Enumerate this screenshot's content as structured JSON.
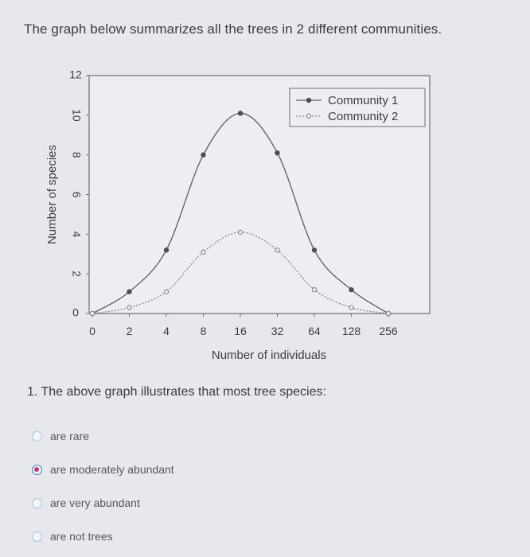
{
  "prompt": "The graph below summarizes all the trees in 2 different communities.",
  "question": "1. The above graph illustrates that most tree species:",
  "options": [
    {
      "label": "are rare",
      "selected": false
    },
    {
      "label": "are moderately abundant",
      "selected": true
    },
    {
      "label": "are very abundant",
      "selected": false
    },
    {
      "label": "are not trees",
      "selected": false
    }
  ],
  "colors": {
    "series1": "#5a5d62",
    "series2": "#8a8d92",
    "selected_radio": "#c2367f"
  },
  "chart_data": {
    "type": "line",
    "xlabel": "Number of individuals",
    "ylabel": "Number of species",
    "x": [
      "0",
      "2",
      "4",
      "8",
      "16",
      "32",
      "64",
      "128",
      "256"
    ],
    "ylim": [
      0,
      12
    ],
    "yticks": [
      0,
      2,
      4,
      6,
      8,
      10,
      12
    ],
    "grid": false,
    "legend_position": "top-right",
    "series": [
      {
        "name": "Community 1",
        "values": [
          0,
          1.1,
          3.2,
          8.0,
          10.1,
          8.1,
          3.2,
          1.2,
          0
        ],
        "style": "solid-filled"
      },
      {
        "name": "Community 2",
        "values": [
          0,
          0.3,
          1.1,
          3.1,
          4.1,
          3.2,
          1.2,
          0.3,
          0
        ],
        "style": "dotted-open"
      }
    ]
  }
}
